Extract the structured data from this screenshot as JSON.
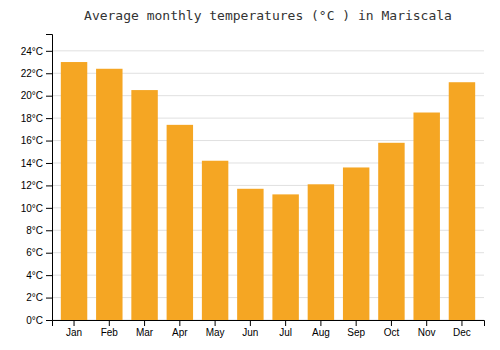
{
  "chart_data": {
    "type": "bar",
    "title": "Average monthly temperatures (°C ) in Mariscala",
    "categories": [
      "Jan",
      "Feb",
      "Mar",
      "Apr",
      "May",
      "Jun",
      "Jul",
      "Aug",
      "Sep",
      "Oct",
      "Nov",
      "Dec"
    ],
    "values": [
      23.0,
      22.4,
      20.5,
      17.4,
      14.2,
      11.7,
      11.2,
      12.1,
      13.6,
      15.8,
      18.5,
      21.2
    ],
    "color": "#F5A623",
    "ylim": [
      0,
      25.5
    ],
    "yticks": [
      {
        "value": 0,
        "label": "0°C"
      },
      {
        "value": 2,
        "label": "2°C"
      },
      {
        "value": 4,
        "label": "4°C"
      },
      {
        "value": 6,
        "label": "6°C"
      },
      {
        "value": 8,
        "label": "8°C"
      },
      {
        "value": 10,
        "label": "10°C"
      },
      {
        "value": 12,
        "label": "12°C"
      },
      {
        "value": 14,
        "label": "14°C"
      },
      {
        "value": 16,
        "label": "16°C"
      },
      {
        "value": 18,
        "label": "18°C"
      },
      {
        "value": 20,
        "label": "20°C"
      },
      {
        "value": 22,
        "label": "22°C"
      },
      {
        "value": 24,
        "label": "24°C"
      }
    ],
    "grid": true
  }
}
